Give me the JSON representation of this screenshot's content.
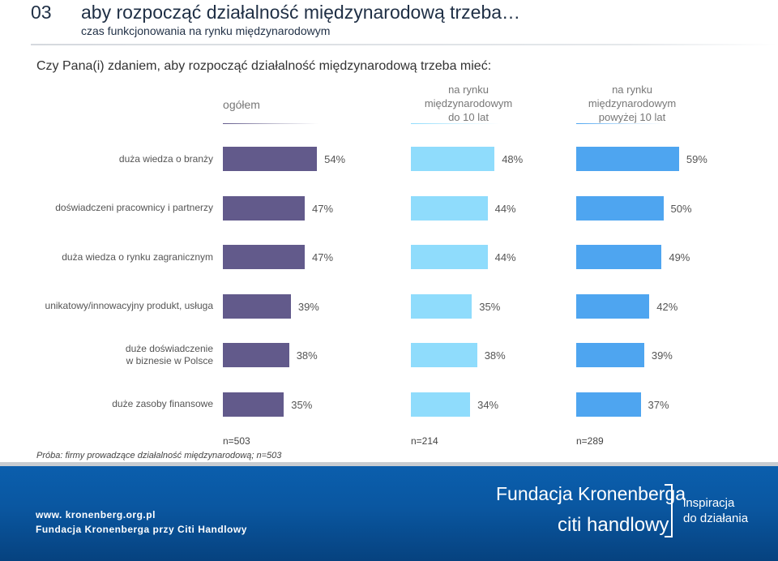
{
  "header": {
    "slide_number": "03",
    "title": "aby rozpocząć działalność międzynarodową trzeba…",
    "subtitle": "czas funkcjonowania na rynku międzynarodowym",
    "question": "Czy Pana(i) zdaniem, aby rozpocząć działalność międzynarodową trzeba mieć:"
  },
  "columns": [
    {
      "line1": "",
      "line2": "ogółem",
      "line3": ""
    },
    {
      "line1": "na rynku",
      "line2": "międzynarodowym",
      "line3": "do 10 lat"
    },
    {
      "line1": "na rynku",
      "line2": "międzynarodowym",
      "line3": "powyżej 10 lat"
    }
  ],
  "sample_sizes": [
    "n=503",
    "n=214",
    "n=289"
  ],
  "sample_note": "Próba: firmy prowadzące działalność międzynarodową; n=503",
  "colors": {
    "ogolem": "#625a8b",
    "do10": "#8fdcfc",
    "powyzej10": "#4ea5f0"
  },
  "chart_data": {
    "type": "bar",
    "categories": [
      "duża wiedza o branży",
      "doświadczeni pracownicy i partnerzy",
      "duża wiedza o rynku zagranicznym",
      "unikatowy/innowacyjny produkt, usługa",
      "duże doświadczenie w biznesie w Polsce",
      "duże zasoby finansowe"
    ],
    "category_lines": [
      [
        "duża wiedza o branży"
      ],
      [
        "doświadczeni pracownicy i partnerzy"
      ],
      [
        "duża wiedza o rynku zagranicznym"
      ],
      [
        "unikatowy/innowacyjny produkt, usługa"
      ],
      [
        "duże doświadczenie",
        "w biznesie w Polsce"
      ],
      [
        "duże zasoby finansowe"
      ]
    ],
    "series": [
      {
        "name": "ogółem",
        "values": [
          54,
          47,
          47,
          39,
          38,
          35
        ],
        "labels": [
          "54%",
          "47%",
          "47%",
          "39%",
          "38%",
          "35%"
        ]
      },
      {
        "name": "na rynku międzynarodowym do 10 lat",
        "values": [
          48,
          44,
          44,
          35,
          38,
          34
        ],
        "labels": [
          "48%",
          "44%",
          "44%",
          "35%",
          "38%",
          "34%"
        ]
      },
      {
        "name": "na rynku międzynarodowym powyżej 10 lat",
        "values": [
          59,
          50,
          49,
          42,
          39,
          37
        ],
        "labels": [
          "59%",
          "50%",
          "49%",
          "42%",
          "39%",
          "37%"
        ]
      }
    ],
    "unit": "%"
  },
  "footer": {
    "url": "www. kronenberg.org.pl",
    "org": "Fundacja Kronenberga przy Citi Handlowy",
    "logo_text": "Fundacja Kronenberga",
    "citi_text": "citi handlowy",
    "tagline_1": "inspiracja",
    "tagline_2": "do działania"
  }
}
